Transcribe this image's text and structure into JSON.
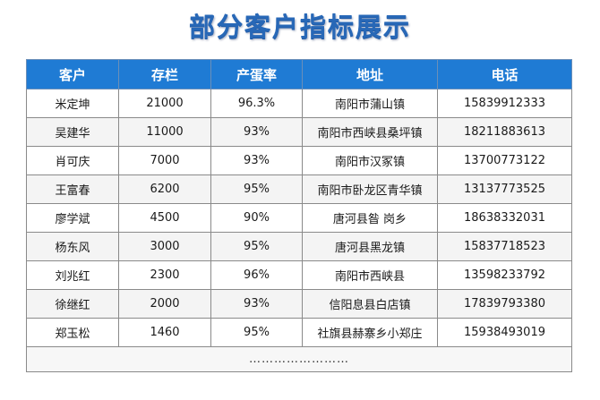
{
  "title": "部分客户指标展示",
  "table": {
    "headers": [
      "客户",
      "存栏",
      "产蛋率",
      "地址",
      "电话"
    ],
    "rows": [
      [
        "米定坤",
        "21000",
        "96.3%",
        "南阳市蒲山镇",
        "15839912333"
      ],
      [
        "吴建华",
        "11000",
        "93%",
        "南阳市西峡县桑坪镇",
        "18211883613"
      ],
      [
        "肖可庆",
        "7000",
        "93%",
        "南阳市汉冢镇",
        "13700773122"
      ],
      [
        "王富春",
        "6200",
        "95%",
        "南阳市卧龙区青华镇",
        "13137773525"
      ],
      [
        "廖学斌",
        "4500",
        "90%",
        "唐河县昝 岗乡",
        "18638332031"
      ],
      [
        "杨东风",
        "3000",
        "95%",
        "唐河县黑龙镇",
        "15837718523"
      ],
      [
        "刘兆红",
        "2300",
        "96%",
        "南阳市西峡县",
        "13598233792"
      ],
      [
        "徐继红",
        "2000",
        "93%",
        "信阳息县白店镇",
        "17839793380"
      ],
      [
        "郑玉松",
        "1460",
        "95%",
        "社旗县赫寨乡小郑庄",
        "15938493019"
      ]
    ],
    "footer_text": "……………………"
  },
  "colors": {
    "title": "#2868b7",
    "header_bg": "#1f7bd4",
    "header_text": "#ffffff",
    "border": "#8a8a8a",
    "stripe": "#f4f4f4"
  }
}
